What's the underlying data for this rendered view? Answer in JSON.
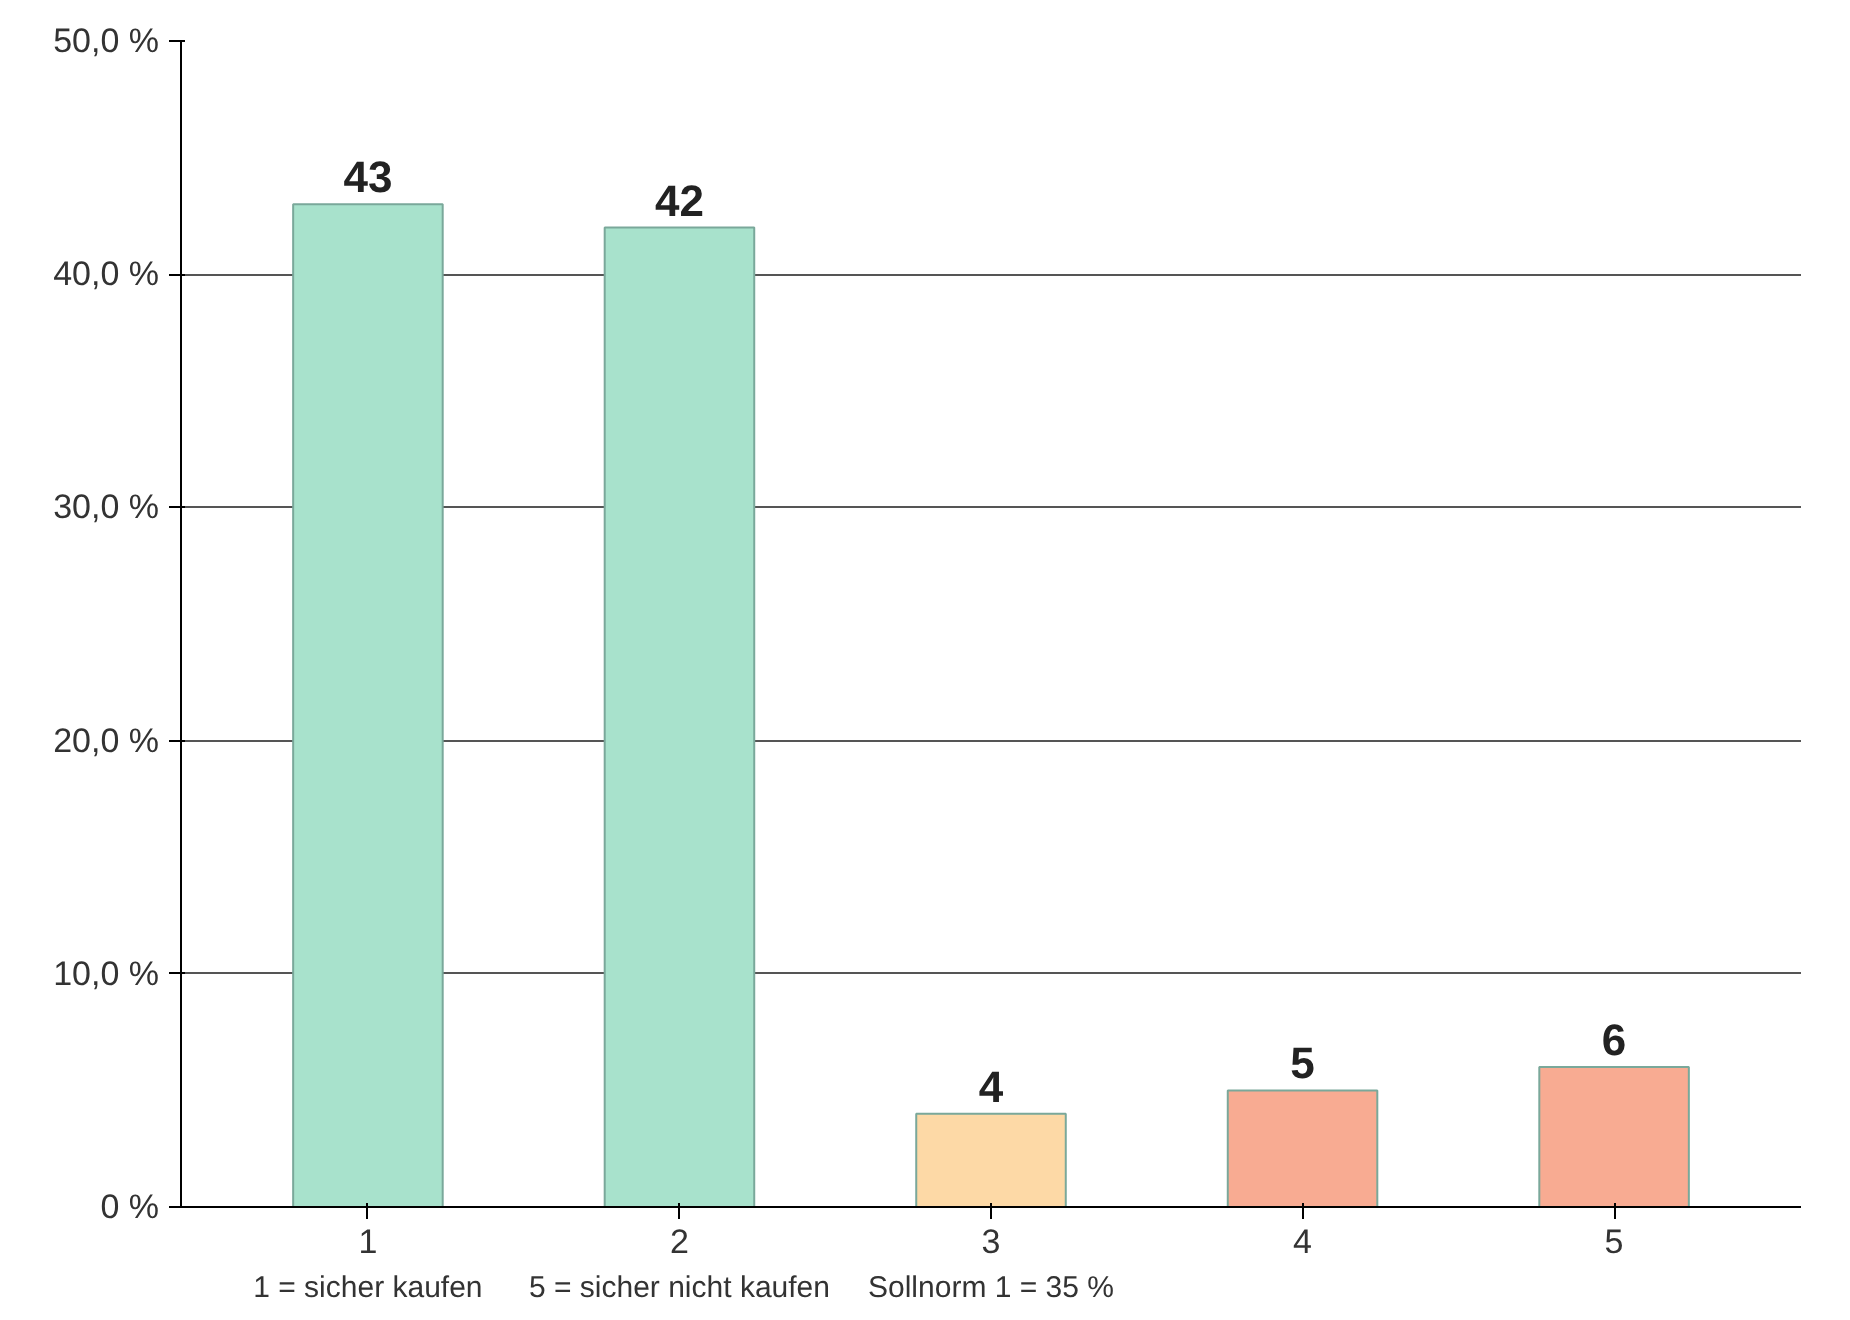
{
  "chart_data": {
    "type": "bar",
    "categories": [
      "1",
      "2",
      "3",
      "4",
      "5"
    ],
    "values": [
      43,
      42,
      4,
      5,
      6
    ],
    "colors": [
      "#a8e2cc",
      "#a8e2cc",
      "#fdd9a6",
      "#f8ab92",
      "#f8ab92"
    ],
    "data_labels": true,
    "ylim": [
      0,
      50
    ],
    "yticks": [
      {
        "value": 0,
        "label": "0 %"
      },
      {
        "value": 10,
        "label": "10,0 %"
      },
      {
        "value": 20,
        "label": "20,0 %"
      },
      {
        "value": 30,
        "label": "30,0 %"
      },
      {
        "value": 40,
        "label": "40,0 %"
      },
      {
        "value": 50,
        "label": "50,0 %"
      }
    ],
    "grid": "y",
    "annotations": [
      "1 = sicher kaufen",
      "5 = sicher nicht kaufen",
      "Sollnorm 1 = 35 %"
    ]
  }
}
